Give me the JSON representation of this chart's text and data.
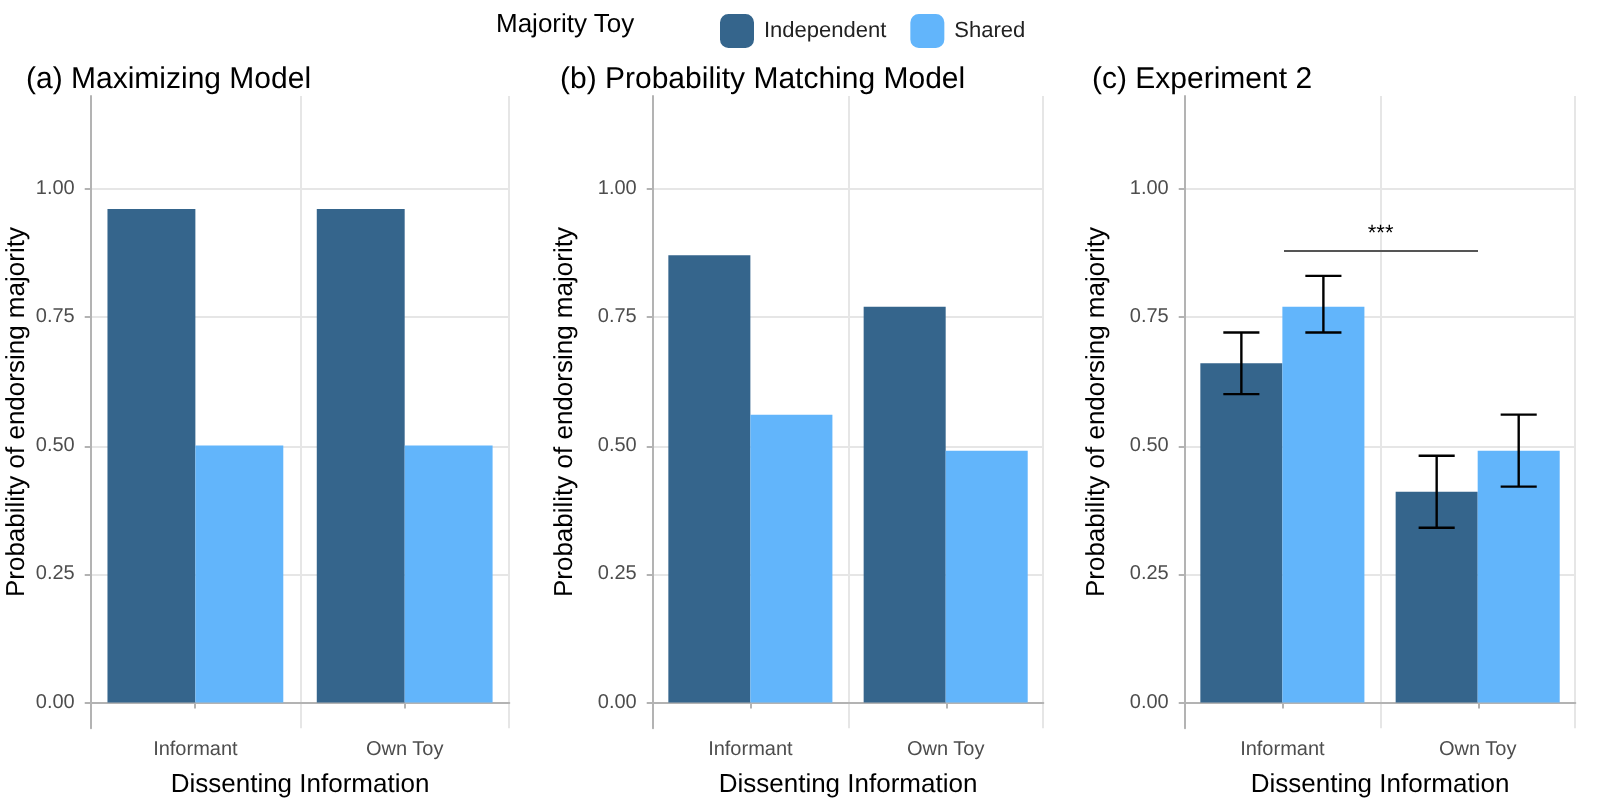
{
  "chart_data": [
    {
      "type": "bar",
      "title": "(a) Maximizing Model",
      "xlabel": "Dissenting Information",
      "ylabel": "Probability of endorsing majority",
      "legend_title": "Majority Toy",
      "legend": "top",
      "grid": true,
      "categories": [
        "Informant",
        "Own Toy"
      ],
      "series": [
        {
          "name": "Independent",
          "color": "#35658c",
          "values": [
            0.96,
            0.96
          ]
        },
        {
          "name": "Shared",
          "color": "#62b5fb",
          "values": [
            0.5,
            0.5
          ]
        }
      ],
      "ylim": [
        -0.05,
        1.18
      ],
      "yticks": [
        {
          "value": 0,
          "label": "0.00"
        },
        {
          "value": 0.25,
          "label": "0.25"
        },
        {
          "value": 0.5,
          "label": "0.50"
        },
        {
          "value": 0.75,
          "label": "0.75"
        },
        {
          "value": 1,
          "label": "1.00"
        }
      ]
    },
    {
      "type": "bar",
      "title": "(b) Probability Matching Model",
      "xlabel": "Dissenting Information",
      "ylabel": "Probability of endorsing majority",
      "grid": true,
      "categories": [
        "Informant",
        "Own Toy"
      ],
      "series": [
        {
          "color": "#35658c",
          "values": [
            0.87,
            0.77
          ]
        },
        {
          "color": "#62b5fb",
          "values": [
            0.56,
            0.49
          ]
        }
      ],
      "ylim": [
        -0.05,
        1.18
      ],
      "yticks": [
        {
          "value": 0,
          "label": "0.00"
        },
        {
          "value": 0.25,
          "label": "0.25"
        },
        {
          "value": 0.5,
          "label": "0.50"
        },
        {
          "value": 0.75,
          "label": "0.75"
        },
        {
          "value": 1,
          "label": "1.00"
        }
      ]
    },
    {
      "type": "bar",
      "title": "(c) Experiment 2",
      "xlabel": "Dissenting Information",
      "ylabel": "Probability of endorsing majority",
      "grid": true,
      "annotations": [
        "***"
      ],
      "categories": [
        "Informant",
        "Own Toy"
      ],
      "series": [
        {
          "color": "#35658c",
          "values": [
            0.66,
            0.41
          ],
          "errors": [
            [
              0.6,
              0.72
            ],
            [
              0.34,
              0.48
            ]
          ]
        },
        {
          "color": "#62b5fb",
          "values": [
            0.77,
            0.49
          ],
          "errors": [
            [
              0.72,
              0.83
            ],
            [
              0.42,
              0.56
            ]
          ]
        }
      ],
      "ylim": [
        -0.05,
        1.18
      ],
      "yticks": [
        {
          "value": 0,
          "label": "0.00"
        },
        {
          "value": 0.25,
          "label": "0.25"
        },
        {
          "value": 0.5,
          "label": "0.50"
        },
        {
          "value": 0.75,
          "label": "0.75"
        },
        {
          "value": 1,
          "label": "1.00"
        }
      ]
    }
  ]
}
